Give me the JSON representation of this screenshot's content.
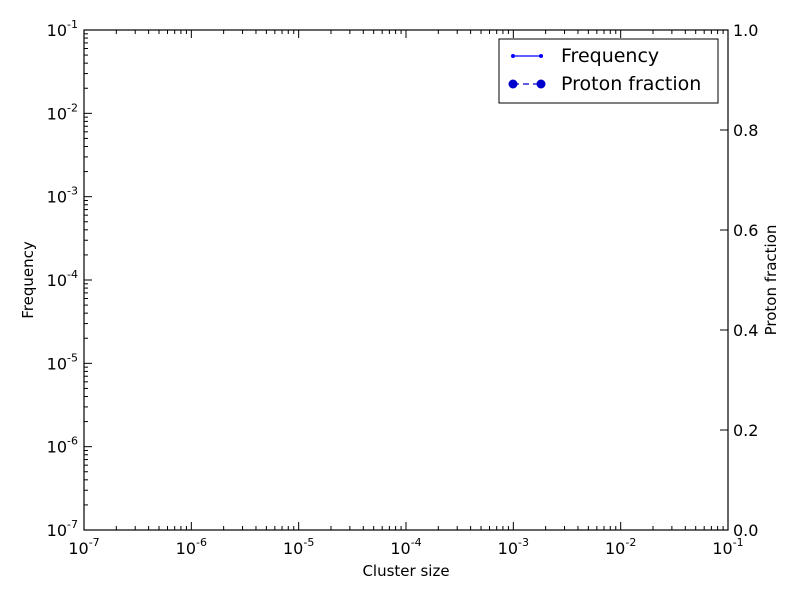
{
  "chart_data": {
    "type": "line",
    "title": "",
    "xlabel": "Cluster size",
    "ylabel": "Frequency",
    "y2label": "Proton fraction",
    "xscale": "log",
    "yscale": "log",
    "xlim": [
      1e-07,
      0.1
    ],
    "ylim": [
      1e-07,
      0.1
    ],
    "y2lim": [
      0.0,
      1.0
    ],
    "x_ticks": [
      {
        "base": "10",
        "exp": "-7"
      },
      {
        "base": "10",
        "exp": "-6"
      },
      {
        "base": "10",
        "exp": "-5"
      },
      {
        "base": "10",
        "exp": "-4"
      },
      {
        "base": "10",
        "exp": "-3"
      },
      {
        "base": "10",
        "exp": "-2"
      },
      {
        "base": "10",
        "exp": "-1"
      }
    ],
    "y_ticks": [
      {
        "base": "10",
        "exp": "-7"
      },
      {
        "base": "10",
        "exp": "-6"
      },
      {
        "base": "10",
        "exp": "-5"
      },
      {
        "base": "10",
        "exp": "-4"
      },
      {
        "base": "10",
        "exp": "-3"
      },
      {
        "base": "10",
        "exp": "-2"
      },
      {
        "base": "10",
        "exp": "-1"
      }
    ],
    "y2_ticks": [
      "0.0",
      "0.2",
      "0.4",
      "0.6",
      "0.8",
      "1.0"
    ],
    "grid": false,
    "legend_position": "top-right",
    "series": [
      {
        "name": "Frequency",
        "axis": "left",
        "style": "line-small-markers",
        "color": "#0000ff",
        "x": [],
        "y": []
      },
      {
        "name": "Proton fraction",
        "axis": "right",
        "style": "dashed-large-markers",
        "color": "#0000cc",
        "x": [],
        "y": []
      }
    ]
  }
}
